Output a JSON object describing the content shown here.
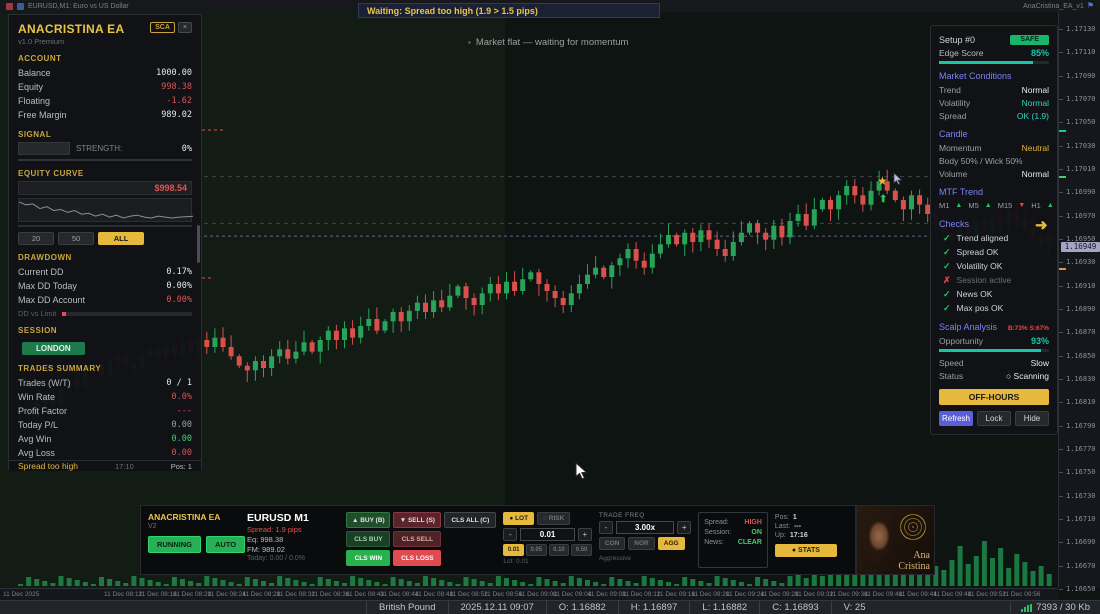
{
  "window": {
    "chart_title": "EURUSD,M1: Euro vs US Dollar",
    "ea_name": "AnaCristina_EA_v1",
    "flag_icon": "⚑"
  },
  "banner": {
    "text": "Waiting: Spread too high (1.9 > 1.5 pips)"
  },
  "market_note": {
    "icon": "▪",
    "text": "Market flat — waiting for momentum"
  },
  "left_panel": {
    "title": "ANACRISTINA EA",
    "version": "v1.0 Premium",
    "badge": "SCA",
    "badge_btn": "×",
    "account": {
      "heading": "ACCOUNT",
      "rows": [
        {
          "label": "Balance",
          "value": "1000.00",
          "color": "white"
        },
        {
          "label": "Equity",
          "value": "998.38",
          "color": "red"
        },
        {
          "label": "Floating",
          "value": "-1.62",
          "color": "red"
        },
        {
          "label": "Free Margin",
          "value": "989.02",
          "color": "white"
        }
      ]
    },
    "signal": {
      "heading": "SIGNAL",
      "strength_label": "STRENGTH:",
      "strength_value": "0%"
    },
    "equity": {
      "heading": "EQUITY CURVE",
      "value": "$998.54",
      "buttons": [
        {
          "label": "20",
          "active": false
        },
        {
          "label": "50",
          "active": false
        },
        {
          "label": "ALL",
          "active": true
        }
      ],
      "spark": [
        999.3,
        999.15,
        999.2,
        998.95,
        999.05,
        998.85,
        998.9,
        998.75,
        998.85,
        998.65,
        998.7,
        998.55,
        998.65,
        998.5,
        998.6,
        998.45,
        998.55,
        998.6,
        998.5,
        998.45,
        998.55,
        998.5,
        998.45,
        998.5,
        998.52,
        998.54
      ]
    },
    "drawdown": {
      "heading": "DRAWDOWN",
      "rows": [
        {
          "label": "Current DD",
          "value": "0.17%",
          "color": "white"
        },
        {
          "label": "Max DD Today",
          "value": "0.00%",
          "color": "white"
        },
        {
          "label": "Max DD Account",
          "value": "0.00%",
          "color": "red"
        }
      ],
      "limit_label": "DD vs Limit"
    },
    "session": {
      "heading": "SESSION",
      "badge": "LONDON"
    },
    "trades": {
      "heading": "TRADES SUMMARY",
      "rows": [
        {
          "label": "Trades (W/T)",
          "value": "0 / 1",
          "color": "white"
        },
        {
          "label": "Win Rate",
          "value": "0.0%",
          "color": "red"
        },
        {
          "label": "Profit Factor",
          "value": "---",
          "color": "red"
        },
        {
          "label": "Today P/L",
          "value": "0.00",
          "color": "grey"
        },
        {
          "label": "Avg Win",
          "value": "0.00",
          "color": "green"
        },
        {
          "label": "Avg Loss",
          "value": "0.00",
          "color": "red"
        }
      ]
    },
    "footer": {
      "status": "Spread too high",
      "time": "17:10",
      "pos": "Pos: 1"
    }
  },
  "right_panel": {
    "setup": "Setup #0",
    "safe_badge": "SAFE",
    "edge": {
      "label": "Edge Score",
      "value": "85%",
      "pct": 85
    },
    "market_conditions": {
      "heading": "Market Conditions",
      "rows": [
        {
          "label": "Trend",
          "value": "Normal",
          "color": "white"
        },
        {
          "label": "Volatility",
          "value": "Normal",
          "color": "teal"
        },
        {
          "label": "Spread",
          "value": "OK (1.9)",
          "color": "teal"
        }
      ]
    },
    "candle": {
      "heading": "Candle",
      "rows": [
        {
          "label": "Momentum",
          "value": "Neutral",
          "color": "yellow"
        },
        {
          "label": "Body 50% / Wick 50%",
          "value": "",
          "color": "grey"
        },
        {
          "label": "Volume",
          "value": "Normal",
          "color": "white"
        }
      ]
    },
    "mtf": {
      "heading": "MTF Trend",
      "items": [
        {
          "tf": "M1",
          "arrow": "▲",
          "dir": "up"
        },
        {
          "tf": "M5",
          "arrow": "▲",
          "dir": "up"
        },
        {
          "tf": "M15",
          "arrow": "▼",
          "dir": "down"
        },
        {
          "tf": "H1",
          "arrow": "▲",
          "dir": "up"
        }
      ]
    },
    "checks": {
      "heading": "Checks",
      "items": [
        {
          "glyph": "✓",
          "label": "Trend aligned",
          "muted": false
        },
        {
          "glyph": "✓",
          "label": "Spread OK",
          "muted": false
        },
        {
          "glyph": "✓",
          "label": "Volatility OK",
          "muted": false
        },
        {
          "glyph": "✗",
          "label": "Session active",
          "muted": true
        },
        {
          "glyph": "✓",
          "label": "News OK",
          "muted": false
        },
        {
          "glyph": "✓",
          "label": "Max pos OK",
          "muted": false
        }
      ]
    },
    "scalp": {
      "heading": "Scalp Analysis",
      "note": "B:73% S:67%",
      "opportunity_label": "Opportunity",
      "opportunity_value": "93%",
      "pct": 93,
      "speed_label": "Speed",
      "speed_value": "Slow",
      "status_label": "Status",
      "status_value": "○ Scanning"
    },
    "offhours": "OFF-HOURS",
    "buttons": [
      {
        "label": "Refresh",
        "style": "primary"
      },
      {
        "label": "Lock",
        "style": "dark"
      },
      {
        "label": "Hide",
        "style": "dark"
      }
    ],
    "arrow_icon": "➜"
  },
  "bottom_panel": {
    "title": "ANACRISTINA EA",
    "version": "V2",
    "state_buttons": [
      {
        "label": "RUNNING"
      },
      {
        "label": "AUTO"
      }
    ],
    "symbol": "EURUSD M1",
    "spread": "Spread: 1.9 pips",
    "eq": "Eq: 998.38",
    "fm": "FM: 989.02",
    "today": "Today: 0.00 / 0.0%",
    "trade_buttons": {
      "buy": "▲ BUY (B)",
      "sell": "▼ SELL (S)",
      "cls_all": "CLS ALL (C)",
      "cls_buy": "CLS BUY",
      "cls_sell": "CLS SELL",
      "cls_win": "CLS WIN",
      "cls_loss": "CLS LOSS"
    },
    "lot": {
      "lot_toggle": "● LOT",
      "risk_toggle": "○ RISK",
      "minus": "-",
      "value": "0.01",
      "plus": "+",
      "presets": [
        {
          "label": "0.01",
          "active": true
        },
        {
          "label": "0.05",
          "active": false
        },
        {
          "label": "0.10",
          "active": false
        },
        {
          "label": "0.50",
          "active": false
        }
      ],
      "caption": "Lot: 0.01"
    },
    "freq": {
      "heading": "TRADE FREQ",
      "minus": "-",
      "value": "3.00x",
      "plus": "+",
      "modes": [
        {
          "label": "CON",
          "active": false
        },
        {
          "label": "NOR",
          "active": false
        },
        {
          "label": "AGG",
          "active": true
        }
      ],
      "caption": "Aggressive"
    },
    "info": {
      "rows": [
        {
          "label": "Spread:",
          "value": "HIGH",
          "color": "red"
        },
        {
          "label": "Session:",
          "value": "ON",
          "color": "green"
        },
        {
          "label": "News:",
          "value": "CLEAR",
          "color": "green"
        }
      ]
    },
    "pos": {
      "rows": [
        {
          "label": "Pos:",
          "value": "1"
        },
        {
          "label": "Last:",
          "value": "---"
        },
        {
          "label": "Up:",
          "value": "17:16"
        }
      ],
      "stats_button": "● STATS"
    },
    "portrait": {
      "line1": "Ana",
      "line2": "Cristina"
    }
  },
  "status_bar": {
    "items": [
      "British Pound",
      "2025.12.11 09:07",
      "O: 1.16882",
      "H: 1.16897",
      "L: 1.16882",
      "C: 1.16893",
      "V: 25",
      "7393 / 30 Kb"
    ]
  },
  "chart_data": {
    "type": "candlestick",
    "symbol": "EURUSD",
    "timeframe": "M1",
    "ylim": [
      "1.16650",
      "1.17130"
    ],
    "current_price": "1.16949",
    "dashed_levels": [
      "1.17000",
      "1.16960"
    ],
    "price_axis_labels": [
      "1.17130",
      "1.17110",
      "1.17090",
      "1.17070",
      "1.17050",
      "1.17030",
      "1.17010",
      "1.16990",
      "1.16970",
      "1.16950",
      "1.16930",
      "1.16910",
      "1.16890",
      "1.16870",
      "1.16850",
      "1.16830",
      "1.16810",
      "1.16790",
      "1.16770",
      "1.16750",
      "1.16730",
      "1.16710",
      "1.16690",
      "1.16670",
      "1.16650"
    ],
    "time_axis_labels": [
      "11 Dec 2025",
      "11 Dec 08:12",
      "11 Dec 08:16",
      "11 Dec 08:20",
      "11 Dec 08:24",
      "11 Dec 08:28",
      "11 Dec 08:32",
      "11 Dec 08:36",
      "11 Dec 08:40",
      "11 Dec 08:44",
      "11 Dec 08:48",
      "11 Dec 08:52",
      "11 Dec 08:56",
      "11 Dec 09:00",
      "11 Dec 09:04",
      "11 Dec 09:08",
      "11 Dec 09:12",
      "11 Dec 09:16",
      "11 Dec 09:20",
      "11 Dec 09:24",
      "11 Dec 09:28",
      "11 Dec 09:32",
      "11 Dec 09:36",
      "11 Dec 09:40",
      "11 Dec 09:44",
      "11 Dec 09:48",
      "11 Dec 09:52",
      "11 Dec 09:56"
    ],
    "closes_pipettes": [
      116800,
      116795,
      116806,
      116812,
      116804,
      116818,
      116826,
      116820,
      116832,
      116838,
      116830,
      116842,
      116848,
      116840,
      116836,
      116846,
      116852,
      116845,
      116855,
      116848,
      116858,
      116850,
      116860,
      116854,
      116862,
      116854,
      116846,
      116838,
      116834,
      116842,
      116836,
      116846,
      116852,
      116844,
      116850,
      116858,
      116850,
      116860,
      116868,
      116860,
      116870,
      116862,
      116872,
      116878,
      116868,
      116876,
      116884,
      116876,
      116885,
      116892,
      116884,
      116894,
      116888,
      116898,
      116906,
      116896,
      116890,
      116900,
      116908,
      116900,
      116910,
      116902,
      116912,
      116918,
      116908,
      116902,
      116896,
      116890,
      116900,
      116908,
      116916,
      116922,
      116914,
      116924,
      116930,
      116938,
      116928,
      116922,
      116934,
      116942,
      116950,
      116942,
      116952,
      116944,
      116954,
      116946,
      116938,
      116932,
      116944,
      116952,
      116960,
      116952,
      116946,
      116958,
      116948,
      116962,
      116968,
      116958,
      116972,
      116980,
      116972,
      116984,
      116992,
      116984,
      116976,
      116988,
      116996,
      116988,
      116980,
      116972,
      116984,
      116976,
      116968,
      116960,
      116952,
      116946,
      116958,
      116950,
      116962,
      116954,
      116966,
      116958,
      116970,
      116962,
      116956,
      116948,
      116942,
      116949
    ],
    "volumes": [
      2,
      9,
      7,
      5,
      3,
      10,
      8,
      6,
      4,
      2,
      9,
      7,
      5,
      3,
      10,
      8,
      6,
      4,
      2,
      9,
      7,
      5,
      3,
      10,
      8,
      6,
      4,
      2,
      9,
      7,
      5,
      3,
      10,
      8,
      6,
      4,
      2,
      9,
      7,
      5,
      3,
      10,
      8,
      6,
      4,
      2,
      9,
      7,
      5,
      3,
      10,
      8,
      6,
      4,
      2,
      9,
      7,
      5,
      3,
      10,
      8,
      6,
      4,
      2,
      9,
      7,
      5,
      3,
      10,
      8,
      6,
      4,
      2,
      9,
      7,
      5,
      3,
      10,
      8,
      6,
      4,
      2,
      9,
      7,
      5,
      3,
      10,
      8,
      6,
      4,
      2,
      9,
      7,
      5,
      3,
      10,
      12,
      8,
      15,
      10,
      18,
      14,
      22,
      12,
      26,
      16,
      20,
      30,
      18,
      24,
      14,
      28,
      35,
      20,
      16,
      26,
      40,
      22,
      30,
      45,
      28,
      38,
      18,
      32,
      24,
      15,
      20,
      12
    ]
  }
}
